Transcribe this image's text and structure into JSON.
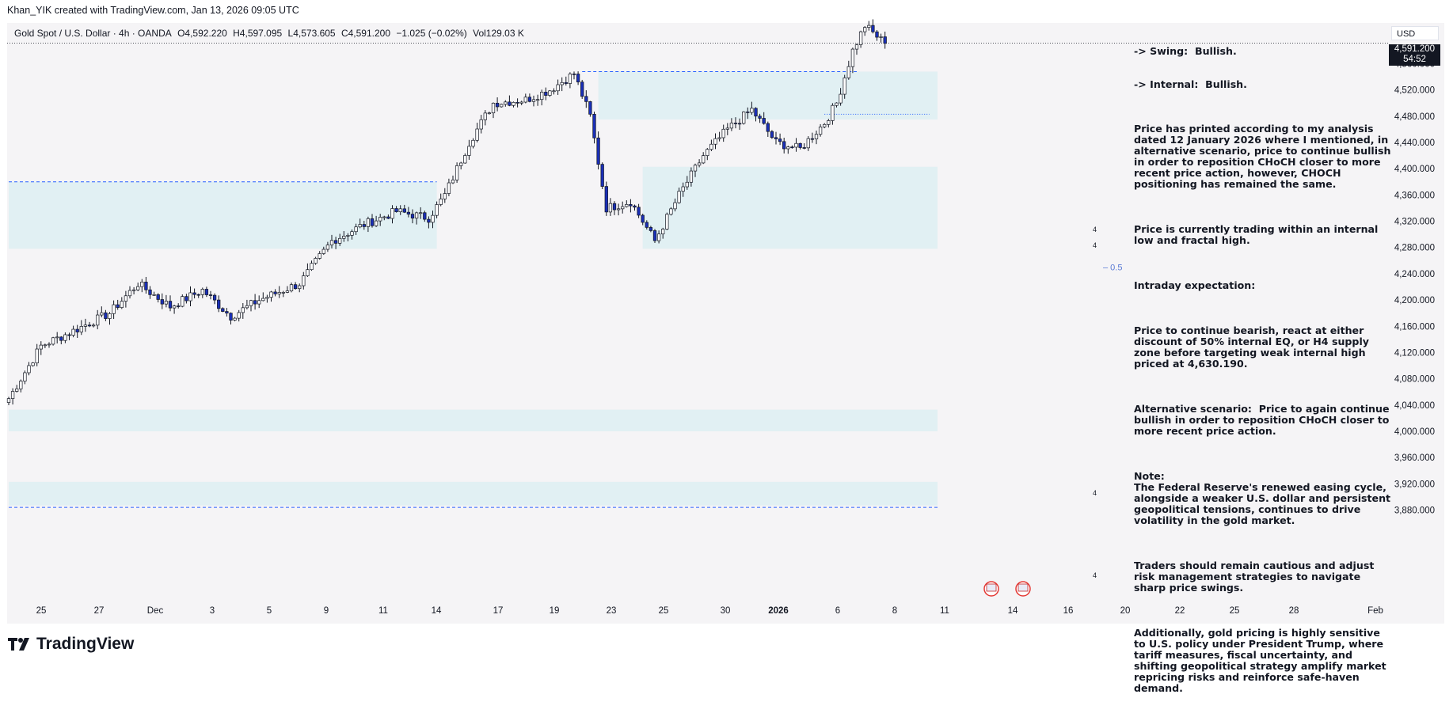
{
  "header": {
    "attribution": "Khan_YIK created with TradingView.com, Jan 13, 2026 09:05 UTC"
  },
  "legend": {
    "symbol": "Gold Spot / U.S. Dollar · 4h · OANDA",
    "open": "O4,592.220",
    "high": "H4,597.095",
    "low": "L4,573.605",
    "close": "C4,591.200",
    "change": "−1.025 (−0.02%)",
    "volume": "Vol129.03 K"
  },
  "price_axis": {
    "currency": "USD",
    "current_price": "4,591.200",
    "countdown": "54:52",
    "eq_label": "0.5"
  },
  "annotation": {
    "swing": "-> Swing:  Bullish.",
    "internal": "-> Internal:  Bullish.",
    "paragraphs": [
      "Price has printed according to my analysis dated 12 January 2026 where I mentioned, in alternative scenario, price to continue bullish in order to reposition CHoCH closer to more recent price action, however, CHOCH positioning has remained the same.",
      "Price is currently trading within an internal low and fractal high.",
      "Intraday expectation:",
      "Price to continue bearish, react at either discount of 50% internal EQ, or H4 supply zone before targeting weak internal high priced at 4,630.190.",
      "Alternative scenario:  Price to again continue bullish in order to reposition CHoCH closer to more recent price action.",
      "Note:\nThe Federal Reserve's renewed easing cycle, alongside a weaker U.S. dollar and persistent geopolitical tensions, continues to drive volatility in the gold market.",
      "Traders should remain cautious and adjust risk management strategies to navigate sharp price swings.",
      "Additionally, gold pricing is highly sensitive to U.S. policy under President Trump, where tariff measures, fiscal uncertainty, and shifting geopolitical strategy amplify market repricing risks and reinforce safe-haven demand."
    ]
  },
  "footer": {
    "brand": "TradingView"
  },
  "colors": {
    "up": "#ffffff",
    "down": "#1a2fb8",
    "wick": "#131722",
    "zone": "#ddeef2",
    "dash": "#2962ff",
    "eq": "#5b7bd5"
  },
  "chart_data": {
    "type": "candlestick",
    "title": "Gold Spot / U.S. Dollar · 4h · OANDA",
    "ylim": [
      3870,
      4660
    ],
    "y_ticks": [
      "4,560.000",
      "4,520.000",
      "4,480.000",
      "4,440.000",
      "4,400.000",
      "4,360.000",
      "4,320.000",
      "4,280.000",
      "4,240.000",
      "4,200.000",
      "4,160.000",
      "4,120.000",
      "4,080.000",
      "4,040.000",
      "4,000.000",
      "3,960.000",
      "3,920.000",
      "3,880.000"
    ],
    "x_ticks": [
      "25",
      "27",
      "Dec",
      "3",
      "5",
      "9",
      "11",
      "14",
      "17",
      "19",
      "23",
      "25",
      "30",
      "2026",
      "6",
      "8",
      "11",
      "14",
      "16",
      "20",
      "22",
      "25",
      "28",
      "Feb"
    ],
    "zone_markers": [
      "4",
      "4",
      "4",
      "4"
    ],
    "anchors": [
      {
        "i": 0,
        "p": 4050
      },
      {
        "i": 8,
        "p": 4130
      },
      {
        "i": 15,
        "p": 4150
      },
      {
        "i": 25,
        "p": 4180
      },
      {
        "i": 32,
        "p": 4225
      },
      {
        "i": 40,
        "p": 4190
      },
      {
        "i": 48,
        "p": 4215
      },
      {
        "i": 55,
        "p": 4175
      },
      {
        "i": 62,
        "p": 4200
      },
      {
        "i": 72,
        "p": 4225
      },
      {
        "i": 80,
        "p": 4290
      },
      {
        "i": 88,
        "p": 4315
      },
      {
        "i": 96,
        "p": 4335
      },
      {
        "i": 104,
        "p": 4325
      },
      {
        "i": 108,
        "p": 4360
      },
      {
        "i": 114,
        "p": 4440
      },
      {
        "i": 120,
        "p": 4500
      },
      {
        "i": 128,
        "p": 4505
      },
      {
        "i": 134,
        "p": 4520
      },
      {
        "i": 140,
        "p": 4545
      },
      {
        "i": 144,
        "p": 4480
      },
      {
        "i": 148,
        "p": 4340
      },
      {
        "i": 154,
        "p": 4350
      },
      {
        "i": 160,
        "p": 4290
      },
      {
        "i": 166,
        "p": 4360
      },
      {
        "i": 172,
        "p": 4420
      },
      {
        "i": 178,
        "p": 4460
      },
      {
        "i": 184,
        "p": 4490
      },
      {
        "i": 190,
        "p": 4440
      },
      {
        "i": 196,
        "p": 4430
      },
      {
        "i": 202,
        "p": 4470
      },
      {
        "i": 205,
        "p": 4500
      },
      {
        "i": 209,
        "p": 4580
      },
      {
        "i": 212,
        "p": 4618
      },
      {
        "i": 217,
        "p": 4591
      }
    ],
    "zones": [
      {
        "name": "supply-zone-top",
        "x0": 146,
        "x1": 230,
        "y0": 4475,
        "y1": 4548
      },
      {
        "name": "demand-zone-left",
        "x0": 0,
        "x1": 106,
        "y0": 4278,
        "y1": 4380
      },
      {
        "name": "demand-zone-mid",
        "x0": 157,
        "x1": 230,
        "y0": 4278,
        "y1": 4403
      },
      {
        "name": "demand-zone-low1",
        "x0": 0,
        "x1": 230,
        "y0": 4000,
        "y1": 4033
      },
      {
        "name": "demand-zone-low2",
        "x0": 0,
        "x1": 230,
        "y0": 3887,
        "y1": 3923
      }
    ],
    "levels": [
      {
        "name": "internal-high-line",
        "x0": 142,
        "x1": 210,
        "y": 4548
      },
      {
        "name": "internal-low-line",
        "x0": 0,
        "x1": 106,
        "y": 4380
      },
      {
        "name": "bottom-line",
        "x0": 0,
        "x1": 230,
        "y": 3884
      },
      {
        "name": "choch-line",
        "x0": 202,
        "x1": 228,
        "y": 4483
      }
    ]
  }
}
